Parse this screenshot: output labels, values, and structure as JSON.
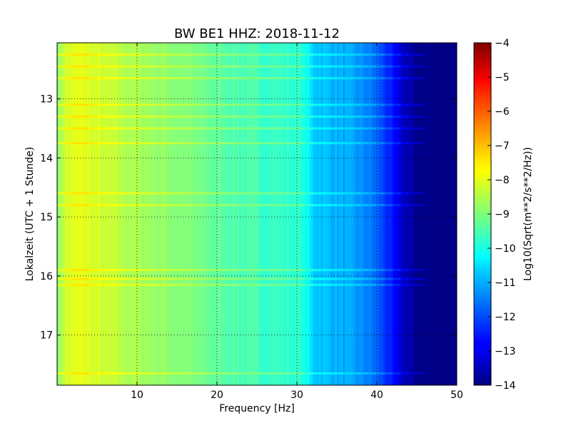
{
  "chart_data": {
    "type": "heatmap",
    "title": "BW BE1 HHZ: 2018-11-12",
    "xlabel": "Frequency [Hz]",
    "ylabel": "Lokalzeit (UTC + 1 Stunde)",
    "xlim": [
      0,
      50
    ],
    "ylim": [
      12.05,
      17.85
    ],
    "y_inverted": true,
    "grid": true,
    "x_ticks": [
      10,
      20,
      30,
      40,
      50
    ],
    "x_tick_labels": [
      "10",
      "20",
      "30",
      "40",
      "50"
    ],
    "y_ticks": [
      13,
      14,
      15,
      16,
      17
    ],
    "y_tick_labels": [
      "13",
      "14",
      "15",
      "16",
      "17"
    ],
    "colorbar": {
      "label": "Log10(Sqrt(m**2/s**2/Hz))",
      "colormap": "jet",
      "range": [
        -14,
        -4
      ],
      "ticks": [
        -4,
        -5,
        -6,
        -7,
        -8,
        -9,
        -10,
        -11,
        -12,
        -13,
        -14
      ],
      "tick_labels": [
        "−4",
        "−5",
        "−6",
        "−7",
        "−8",
        "−9",
        "−10",
        "−11",
        "−12",
        "−13",
        "−14"
      ]
    },
    "spectral_profile": {
      "frequency_hz": [
        0,
        1,
        3,
        6,
        10,
        15,
        20,
        25,
        30,
        31,
        32,
        34,
        37,
        39,
        40,
        41,
        42,
        43,
        44,
        45,
        50
      ],
      "log10_amplitude": [
        -8.9,
        -8.2,
        -8.0,
        -8.3,
        -8.6,
        -8.9,
        -9.3,
        -9.6,
        -9.8,
        -10.0,
        -10.7,
        -10.9,
        -11.2,
        -11.5,
        -11.8,
        -12.2,
        -12.7,
        -13.2,
        -13.6,
        -13.9,
        -13.95
      ]
    },
    "bright_bands_hours": [
      12.25,
      12.45,
      12.65,
      13.1,
      13.3,
      13.5,
      13.75,
      14.6,
      14.8,
      15.9,
      16.05,
      16.15,
      17.65
    ]
  }
}
